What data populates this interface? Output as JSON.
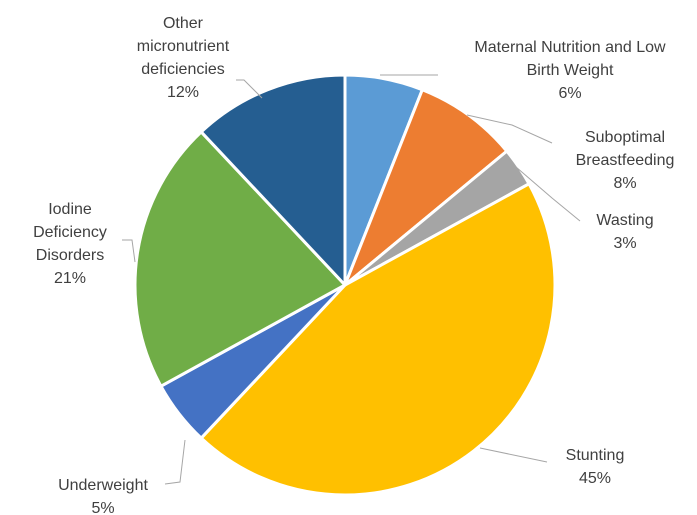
{
  "chart_data": {
    "type": "pie",
    "title": "",
    "slices": [
      {
        "name": "Maternal Nutrition and Low Birth Weight",
        "lines": [
          "Maternal Nutrition and Low",
          "Birth Weight"
        ],
        "value": 6,
        "value_label": "6%",
        "color": "#5b9bd5"
      },
      {
        "name": "Suboptimal Breastfeeding",
        "lines": [
          "Suboptimal",
          "Breastfeeding"
        ],
        "value": 8,
        "value_label": "8%",
        "color": "#ed7d31"
      },
      {
        "name": "Wasting",
        "lines": [
          "Wasting"
        ],
        "value": 3,
        "value_label": "3%",
        "color": "#a5a5a5"
      },
      {
        "name": "Stunting",
        "lines": [
          "Stunting"
        ],
        "value": 45,
        "value_label": "45%",
        "color": "#ffc000"
      },
      {
        "name": "Underweight",
        "lines": [
          "Underweight"
        ],
        "value": 5,
        "value_label": "5%",
        "color": "#4472c4"
      },
      {
        "name": "Iodine Deficiency Disorders",
        "lines": [
          "Iodine",
          "Deficiency",
          "Disorders"
        ],
        "value": 21,
        "value_label": "21%",
        "color": "#70ad47"
      },
      {
        "name": "Other micronutrient deficiencies",
        "lines": [
          "Other",
          "micronutrient",
          "deficiencies"
        ],
        "value": 12,
        "value_label": "12%",
        "color": "#255e91"
      }
    ],
    "start_angle_deg": 0,
    "direction": "clockwise",
    "legend": "none",
    "data_labels": "outside-with-leader-lines"
  }
}
